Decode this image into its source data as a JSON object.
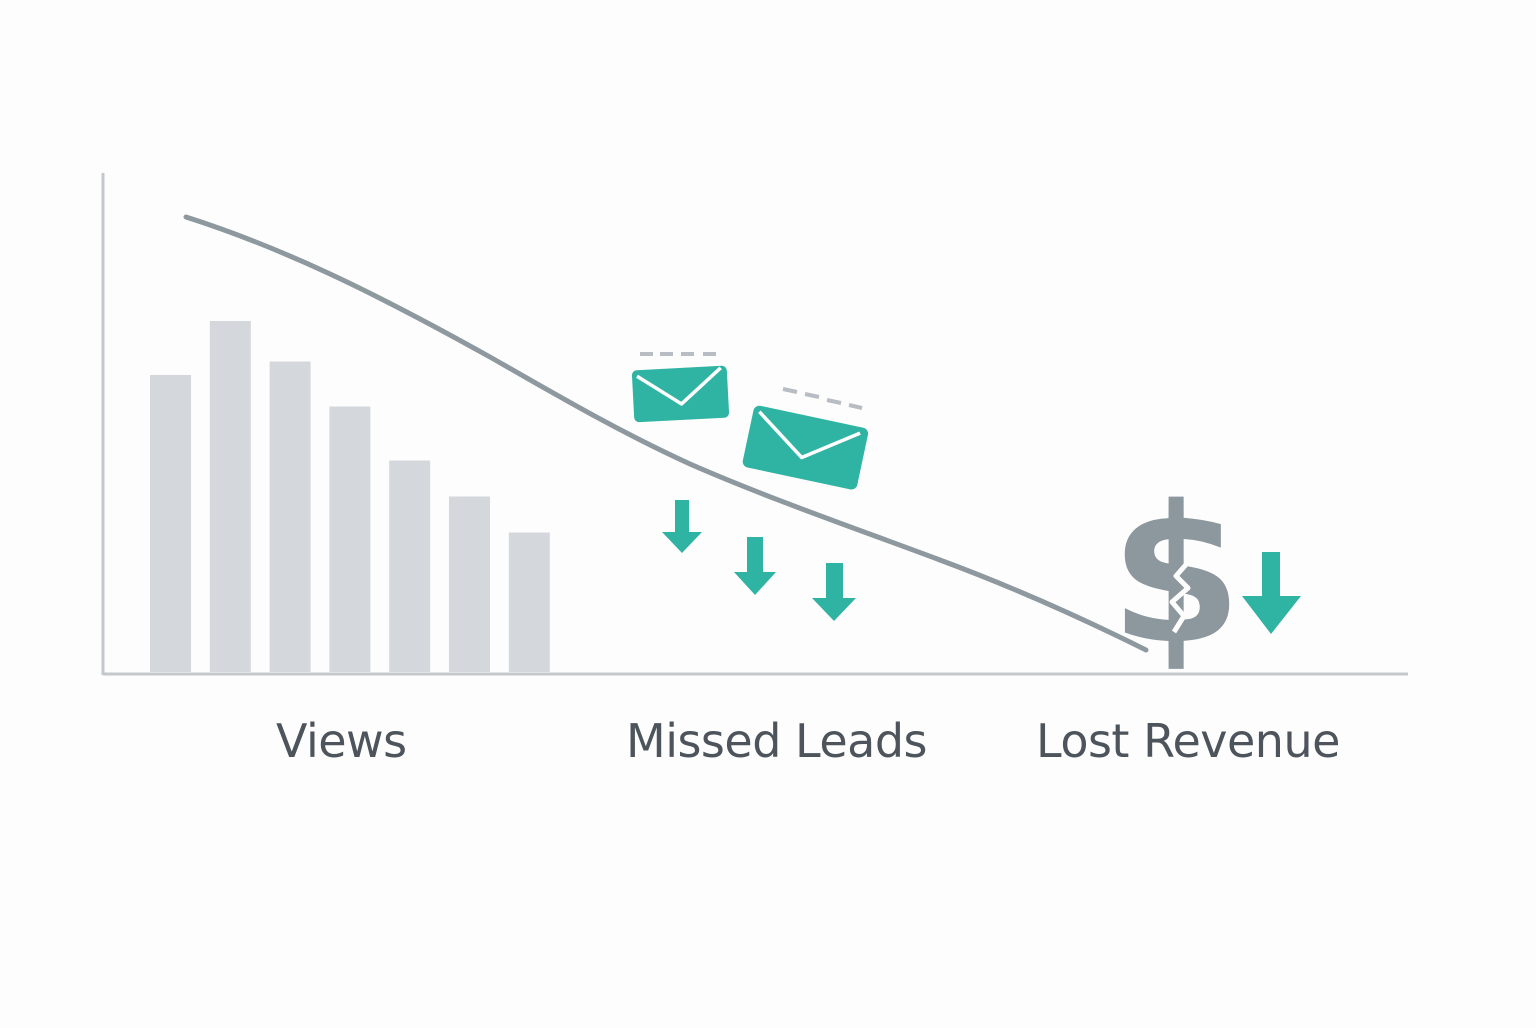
{
  "colors": {
    "background": "#fdfdfd",
    "axis": "#c4c7cb",
    "bars": "#d4d7db",
    "trend_line": "#8e989f",
    "accent_teal": "#2fb4a3",
    "dollar": "#8c979e",
    "label_text": "#4d545b",
    "dash": "#b7bdc2"
  },
  "chart_data": {
    "type": "bar",
    "title": "",
    "xlabel": "",
    "ylabel": "",
    "ylim": [
      0,
      100
    ],
    "grid": false,
    "categories": [
      "",
      "",
      "",
      "",
      "",
      "",
      ""
    ],
    "values": [
      66,
      78,
      69,
      59,
      47,
      39,
      31
    ],
    "trend_line": {
      "x": [
        0,
        0.2,
        0.4,
        0.6,
        0.8,
        1
      ],
      "y": [
        91,
        74,
        48,
        33,
        19,
        4
      ]
    },
    "stage_labels": [
      "Views",
      "Missed Leads",
      "Lost Revenue"
    ]
  },
  "icons": {
    "envelopes": [
      "envelope-icon",
      "envelope-icon"
    ],
    "down_arrows": [
      "down-arrow-icon",
      "down-arrow-icon",
      "down-arrow-icon",
      "down-arrow-icon"
    ],
    "revenue": "dollar-sign-icon"
  }
}
